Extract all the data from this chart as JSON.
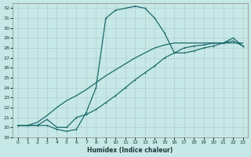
{
  "xlabel": "Humidex (Indice chaleur)",
  "xlim": [
    -0.5,
    23.5
  ],
  "ylim": [
    19,
    32.5
  ],
  "xticks": [
    0,
    1,
    2,
    3,
    4,
    5,
    6,
    7,
    8,
    9,
    10,
    11,
    12,
    13,
    14,
    15,
    16,
    17,
    18,
    19,
    20,
    21,
    22,
    23
  ],
  "yticks": [
    19,
    20,
    21,
    22,
    23,
    24,
    25,
    26,
    27,
    28,
    29,
    30,
    31,
    32
  ],
  "bg_color": "#c6e8e6",
  "line_color": "#1a6b6b",
  "grid_color": "#aecfcd",
  "line1_x": [
    0,
    1,
    2,
    3,
    4,
    5,
    6,
    7,
    8,
    9,
    10,
    11,
    12,
    13,
    14,
    15,
    16,
    17,
    18,
    19,
    20,
    21,
    22,
    23
  ],
  "line1_y": [
    20.2,
    20.2,
    20.2,
    20.2,
    19.8,
    19.6,
    19.8,
    21.5,
    24.0,
    31.0,
    31.8,
    32.0,
    32.2,
    32.0,
    31.0,
    29.5,
    27.5,
    27.5,
    27.7,
    28.0,
    28.2,
    28.5,
    29.0,
    28.2
  ],
  "line2_x": [
    0,
    1,
    2,
    3,
    4,
    5,
    6,
    7,
    8,
    9,
    10,
    11,
    12,
    13,
    14,
    15,
    16,
    17,
    18,
    19,
    20,
    21,
    22,
    23
  ],
  "line2_y": [
    20.2,
    20.2,
    20.2,
    20.8,
    20.0,
    20.0,
    21.0,
    21.3,
    21.8,
    22.5,
    23.2,
    24.0,
    24.8,
    25.5,
    26.2,
    27.0,
    27.5,
    28.0,
    28.2,
    28.3,
    28.5,
    28.5,
    28.7,
    28.2
  ],
  "line3_x": [
    0,
    1,
    2,
    3,
    4,
    5,
    6,
    7,
    8,
    9,
    10,
    11,
    12,
    13,
    14,
    15,
    16,
    17,
    18,
    19,
    20,
    21,
    22,
    23
  ],
  "line3_y": [
    20.2,
    20.2,
    20.5,
    21.2,
    22.0,
    22.7,
    23.2,
    23.8,
    24.5,
    25.2,
    25.8,
    26.4,
    27.0,
    27.5,
    28.0,
    28.3,
    28.5,
    28.5,
    28.5,
    28.5,
    28.5,
    28.5,
    28.5,
    28.5
  ],
  "line1_has_markers": true,
  "line2_has_markers": true,
  "line3_has_markers": false
}
